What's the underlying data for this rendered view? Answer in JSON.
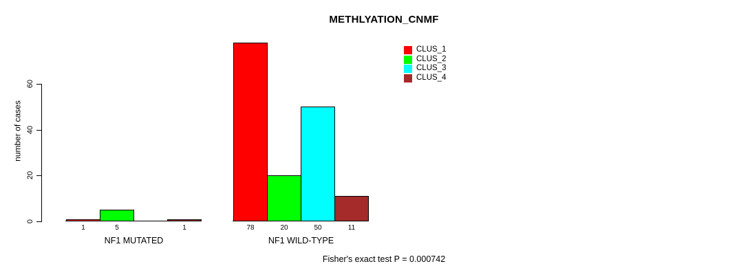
{
  "chart_data": {
    "type": "bar",
    "title": "METHLYATION_CNMF",
    "ylabel": "number of cases",
    "xlabel": "",
    "ylim": [
      0,
      60
    ],
    "yticks": [
      0,
      20,
      40,
      60
    ],
    "grid": false,
    "legend_position": "top-right",
    "legend": [
      {
        "label": "CLUS_1",
        "color": "#FF0000"
      },
      {
        "label": "CLUS_2",
        "color": "#00FF00"
      },
      {
        "label": "CLUS_3",
        "color": "#00FFFF"
      },
      {
        "label": "CLUS_4",
        "color": "#A52A2A"
      }
    ],
    "series_colors": [
      "#FF0000",
      "#00FF00",
      "#00FFFF",
      "#A52A2A"
    ],
    "bar_border_color": "#000000",
    "groups": [
      {
        "label": "NF1 MUTATED",
        "values": [
          1,
          5,
          0,
          1
        ],
        "bar_labels": [
          "1",
          "5",
          "",
          "1"
        ]
      },
      {
        "label": "NF1 WILD-TYPE",
        "values": [
          78,
          20,
          50,
          11
        ],
        "bar_labels": [
          "78",
          "20",
          "50",
          "11"
        ]
      }
    ],
    "footer": "Fisher's exact test P = 0.000742"
  }
}
